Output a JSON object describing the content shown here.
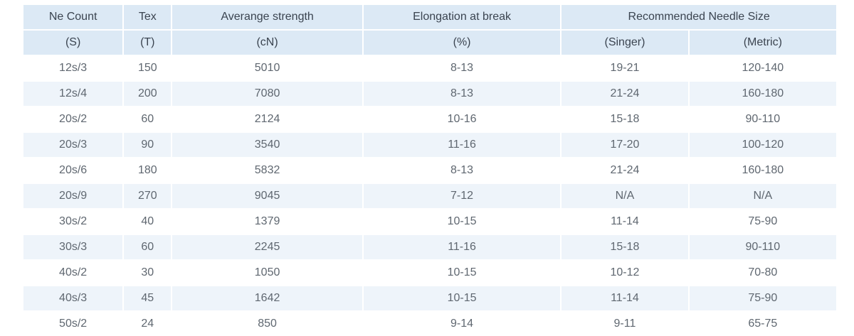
{
  "table": {
    "header_row1": [
      "Ne Count",
      "Tex",
      "Averange strength",
      "Elongation at break",
      "Recommended Needle Size"
    ],
    "header_row2": [
      "(S)",
      "(T)",
      "(cN)",
      "(%)",
      "(Singer)",
      "(Metric)"
    ],
    "rows": [
      [
        "12s/3",
        "150",
        "5010",
        "8-13",
        "19-21",
        "120-140"
      ],
      [
        "12s/4",
        "200",
        "7080",
        "8-13",
        "21-24",
        "160-180"
      ],
      [
        "20s/2",
        "60",
        "2124",
        "10-16",
        "15-18",
        "90-110"
      ],
      [
        "20s/3",
        "90",
        "3540",
        "11-16",
        "17-20",
        "100-120"
      ],
      [
        "20s/6",
        "180",
        "5832",
        "8-13",
        "21-24",
        "160-180"
      ],
      [
        "20s/9",
        "270",
        "9045",
        "7-12",
        "N/A",
        "N/A"
      ],
      [
        "30s/2",
        "40",
        "1379",
        "10-15",
        "11-14",
        "75-90"
      ],
      [
        "30s/3",
        "60",
        "2245",
        "11-16",
        "15-18",
        "90-110"
      ],
      [
        "40s/2",
        "30",
        "1050",
        "10-15",
        "10-12",
        "70-80"
      ],
      [
        "40s/3",
        "45",
        "1642",
        "10-15",
        "11-14",
        "75-90"
      ],
      [
        "50s/2",
        "24",
        "850",
        "9-14",
        "9-11",
        "65-75"
      ]
    ]
  },
  "colors": {
    "header_bg": "#dce9f5",
    "stripe_bg": "#eef4fa",
    "text": "#5f6770"
  }
}
